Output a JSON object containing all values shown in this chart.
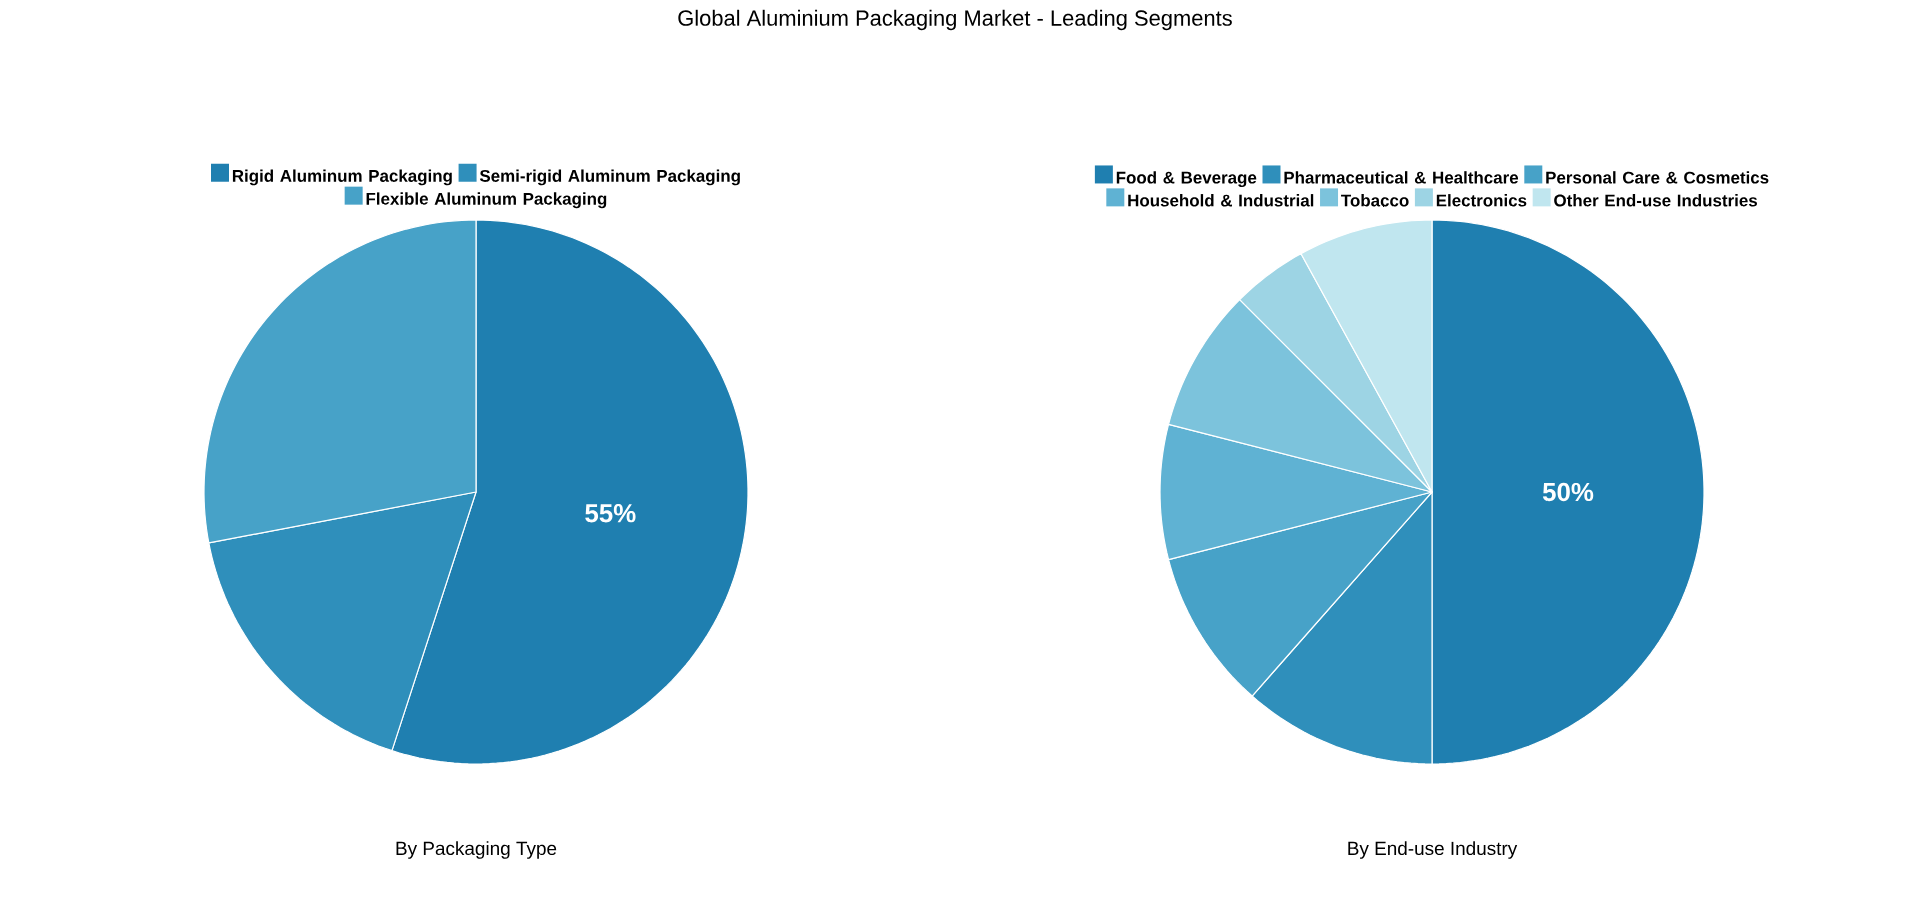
{
  "chart_data": [
    {
      "type": "pie",
      "title": "Global Aluminium Packaging Market - Leading Segments",
      "xlabel": "By Packaging Type",
      "legend": "top",
      "categories": [
        "Rigid Aluminum Packaging",
        "Semi-rigid Aluminum Packaging",
        "Flexible Aluminum Packaging"
      ],
      "values": [
        55,
        17,
        28
      ],
      "colors": [
        "#1f7fb0",
        "#2f8fbb",
        "#47a2c8"
      ],
      "value_labels": [
        "55%",
        null,
        null
      ]
    },
    {
      "type": "pie",
      "xlabel": "By End-use Industry",
      "legend": "top",
      "categories": [
        "Food & Beverage",
        "Pharmaceutical & Healthcare",
        "Personal Care & Cosmetics",
        "Household & Industrial",
        "Tobacco",
        "Electronics",
        "Other End-use Industries"
      ],
      "values": [
        50,
        11.5,
        9.5,
        8,
        8.5,
        4.5,
        8
      ],
      "colors": [
        "#1f7fb0",
        "#2f8fbb",
        "#47a2c8",
        "#5fb2d3",
        "#7cc3dc",
        "#9dd4e4",
        "#c0e6ef"
      ],
      "value_labels": [
        "50%",
        null,
        null,
        null,
        null,
        null,
        null
      ]
    }
  ]
}
